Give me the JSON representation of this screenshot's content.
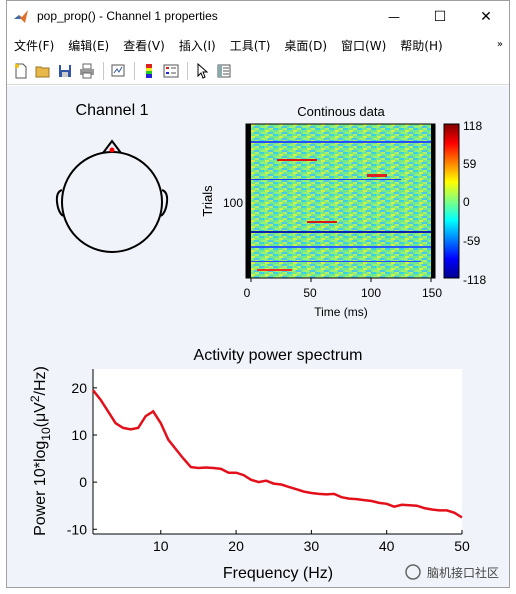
{
  "window": {
    "title": "pop_prop() - Channel 1 properties",
    "minimize_glyph": "—",
    "maximize_glyph": "☐",
    "close_glyph": "✕"
  },
  "menu": {
    "items": [
      "文件(F)",
      "编辑(E)",
      "查看(V)",
      "插入(I)",
      "工具(T)",
      "桌面(D)",
      "窗口(W)",
      "帮助(H)"
    ],
    "overflow_glyph": "»"
  },
  "toolbar": {
    "icons": [
      "new-figure-icon",
      "open-file-icon",
      "save-icon",
      "print-icon",
      "link-plot-icon",
      "colorbar-icon",
      "legend-icon",
      "pointer-icon",
      "property-editor-icon"
    ]
  },
  "topo": {
    "title": "Channel 1",
    "accent": "#ff0000"
  },
  "erpimage": {
    "title": "Continous data",
    "xlabel": "Time (ms)",
    "ylabel": "Trials",
    "xticks": [
      "0",
      "50",
      "100",
      "150"
    ],
    "yticks": [
      "100"
    ],
    "colorbar_ticks": [
      "118",
      "59",
      "0",
      "-59",
      "-118"
    ]
  },
  "watermark": {
    "text": "脑机接口社区"
  },
  "chart_data": {
    "type": "line",
    "title": "Activity power spectrum",
    "xlabel": "Frequency (Hz)",
    "ylabel_parts": [
      "Power 10*log",
      "10",
      "(μV",
      "2",
      "/Hz)"
    ],
    "xlim": [
      1,
      50
    ],
    "ylim": [
      -11,
      24
    ],
    "xticks": [
      10,
      20,
      30,
      40,
      50
    ],
    "yticks": [
      -10,
      0,
      10,
      20
    ],
    "grid": false,
    "line_color": "#e3101b",
    "x": [
      1,
      2,
      3,
      4,
      5,
      6,
      7,
      8,
      9,
      10,
      11,
      12,
      13,
      14,
      15,
      16,
      17,
      18,
      19,
      20,
      21,
      22,
      23,
      24,
      25,
      26,
      27,
      28,
      29,
      30,
      31,
      32,
      33,
      34,
      35,
      36,
      37,
      38,
      39,
      40,
      41,
      42,
      43,
      44,
      45,
      46,
      47,
      48,
      49,
      50
    ],
    "values": [
      19.5,
      17.5,
      15,
      12.5,
      11.5,
      11.2,
      11.5,
      14,
      15,
      12.5,
      9,
      7,
      5,
      3.2,
      3.0,
      3.1,
      3.0,
      2.8,
      2.0,
      2.0,
      1.5,
      0.5,
      0.0,
      0.3,
      -0.3,
      -0.5,
      -1.0,
      -1.5,
      -2.0,
      -2.3,
      -2.5,
      -2.6,
      -2.5,
      -3.2,
      -3.5,
      -3.6,
      -3.8,
      -4.0,
      -4.4,
      -4.6,
      -5.2,
      -4.8,
      -4.9,
      -5.0,
      -5.5,
      -5.8,
      -6.0,
      -6.0,
      -6.5,
      -7.5
    ]
  }
}
